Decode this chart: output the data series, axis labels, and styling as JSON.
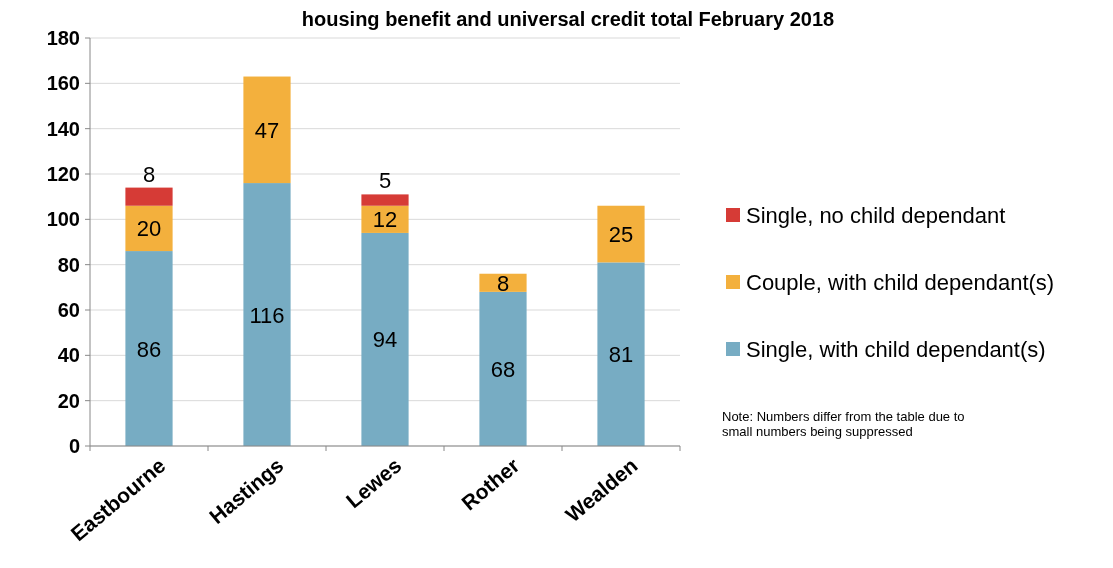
{
  "chart_data": {
    "type": "bar",
    "title": "housing benefit and universal credit total February 2018",
    "categories": [
      "Eastbourne",
      "Hastings",
      "Lewes",
      "Rother",
      "Wealden"
    ],
    "stacked": true,
    "series": [
      {
        "name": "Single, with child dependant(s)",
        "color": "#77acc3",
        "values": [
          86,
          116,
          94,
          68,
          81
        ]
      },
      {
        "name": "Couple, with child dependant(s)",
        "color": "#f3b03d",
        "values": [
          20,
          47,
          12,
          8,
          25
        ]
      },
      {
        "name": "Single, no child dependant",
        "color": "#d63b36",
        "values": [
          8,
          null,
          5,
          null,
          null
        ]
      }
    ],
    "ylim": [
      0,
      180
    ],
    "yticks": [
      0,
      20,
      40,
      60,
      80,
      100,
      120,
      140,
      160,
      180
    ],
    "grid": "y",
    "legend": "right",
    "data_labels": true,
    "annotations": [
      "Note: Numbers differ from the table due to small numbers being suppressed"
    ]
  }
}
